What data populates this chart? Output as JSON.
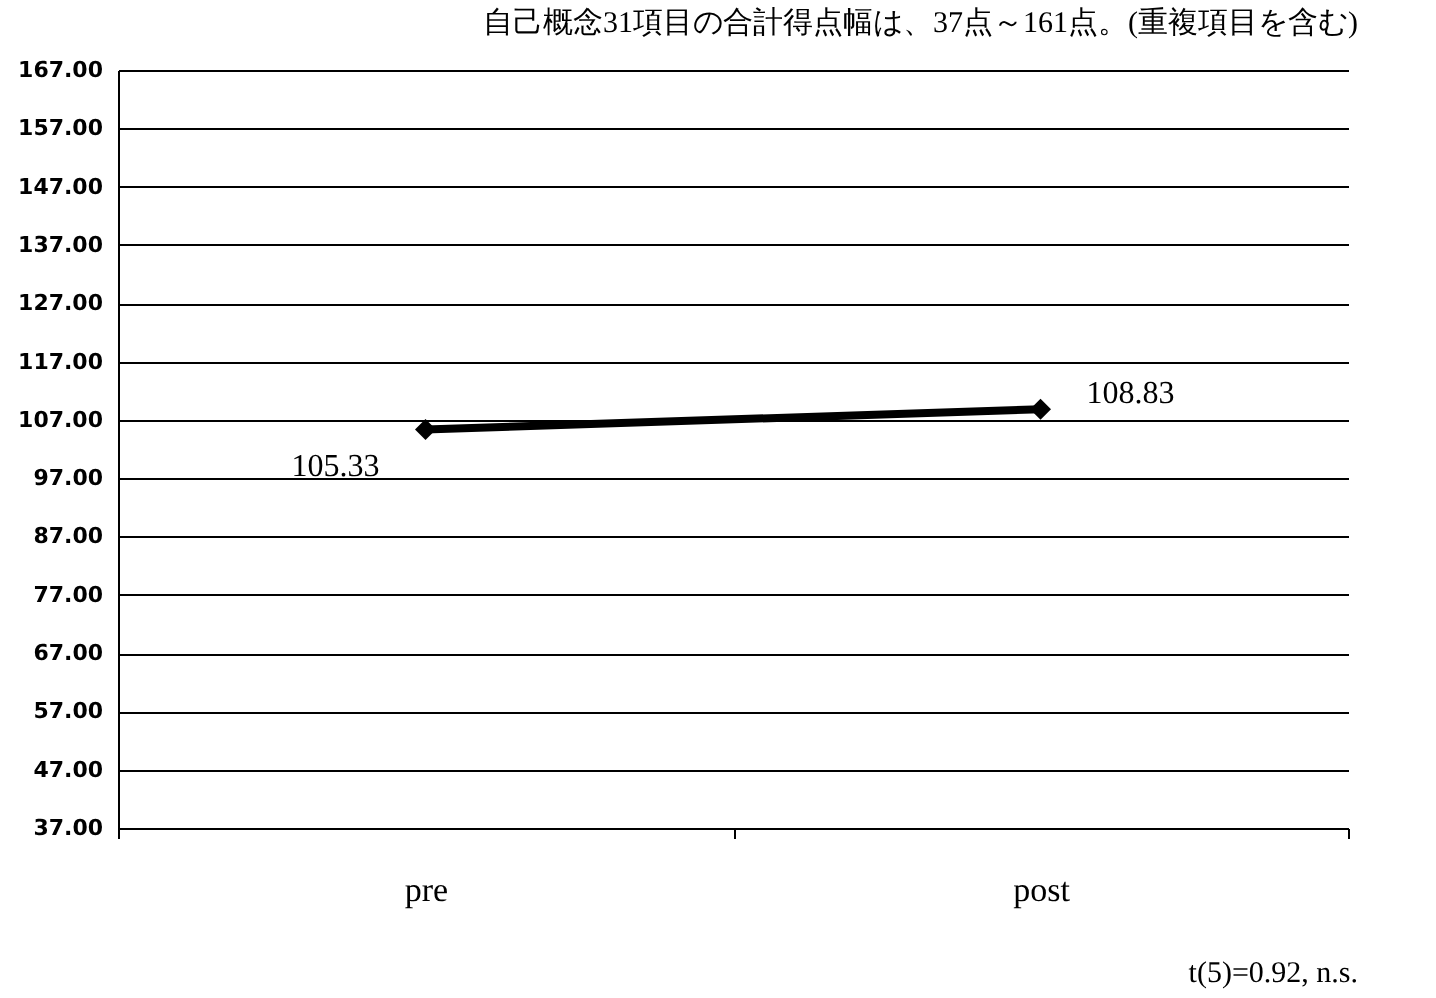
{
  "chart_data": {
    "type": "line",
    "title": "自己概念31項目の合計得点幅は、37点～161点。(重複項目を含む)",
    "categories": [
      "pre",
      "post"
    ],
    "series": [
      {
        "color": "#000000",
        "values": [
          105.33,
          108.83
        ]
      }
    ],
    "ylim": [
      37,
      167
    ],
    "yticks": [
      {
        "value": 37,
        "label": "37.00"
      },
      {
        "value": 47,
        "label": "47.00"
      },
      {
        "value": 57,
        "label": "57.00"
      },
      {
        "value": 67,
        "label": "67.00"
      },
      {
        "value": 77,
        "label": "77.00"
      },
      {
        "value": 87,
        "label": "87.00"
      },
      {
        "value": 97,
        "label": "97.00"
      },
      {
        "value": 107,
        "label": "107.00"
      },
      {
        "value": 117,
        "label": "117.00"
      },
      {
        "value": 127,
        "label": "127.00"
      },
      {
        "value": 137,
        "label": "137.00"
      },
      {
        "value": 147,
        "label": "147.00"
      },
      {
        "value": 157,
        "label": "157.00"
      },
      {
        "value": 167,
        "label": "167.00"
      }
    ],
    "grid": "y",
    "marker": "diamond",
    "line_style": "solid",
    "data_labels": true,
    "legend": false,
    "annotations": [
      "t(5)=0.92, n.s."
    ]
  }
}
